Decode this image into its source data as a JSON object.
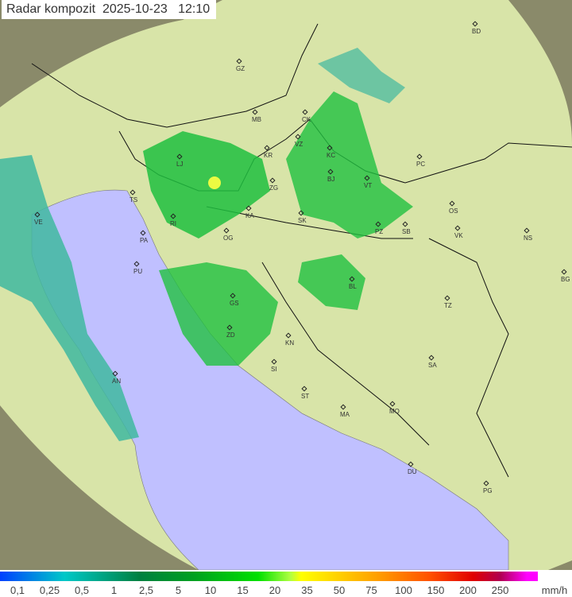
{
  "title": {
    "label": "Radar kompozit",
    "date": "2025-10-23",
    "time": "12:10"
  },
  "colors": {
    "sea": "#c0c0ff",
    "land": "#d8e4a8",
    "outside": "#8a8a6a",
    "echo_light": "#40b8a0",
    "echo": "#20c040",
    "echo_strong": "#ffff40"
  },
  "cities": [
    {
      "code": "BD"
    },
    {
      "code": "GZ"
    },
    {
      "code": "MB"
    },
    {
      "code": "CK"
    },
    {
      "code": "VZ"
    },
    {
      "code": "KR"
    },
    {
      "code": "KC"
    },
    {
      "code": "PC"
    },
    {
      "code": "LJ"
    },
    {
      "code": "TS"
    },
    {
      "code": "ZG"
    },
    {
      "code": "BJ"
    },
    {
      "code": "VT"
    },
    {
      "code": "VE"
    },
    {
      "code": "KA"
    },
    {
      "code": "SK"
    },
    {
      "code": "OS"
    },
    {
      "code": "RI"
    },
    {
      "code": "PA"
    },
    {
      "code": "OG"
    },
    {
      "code": "PZ"
    },
    {
      "code": "SB"
    },
    {
      "code": "VK"
    },
    {
      "code": "NS"
    },
    {
      "code": "PU"
    },
    {
      "code": "BL"
    },
    {
      "code": "BG"
    },
    {
      "code": "GS"
    },
    {
      "code": "TZ"
    },
    {
      "code": "ZD"
    },
    {
      "code": "KN"
    },
    {
      "code": "SA"
    },
    {
      "code": "AN"
    },
    {
      "code": "SI"
    },
    {
      "code": "ST"
    },
    {
      "code": "MA"
    },
    {
      "code": "MO"
    },
    {
      "code": "DU"
    },
    {
      "code": "PG"
    }
  ],
  "legend": {
    "ticks": [
      "0,1",
      "0,25",
      "0,5",
      "1",
      "2,5",
      "5",
      "10",
      "15",
      "20",
      "35",
      "50",
      "75",
      "100",
      "150",
      "200",
      "250"
    ],
    "unit": "mm/h"
  }
}
